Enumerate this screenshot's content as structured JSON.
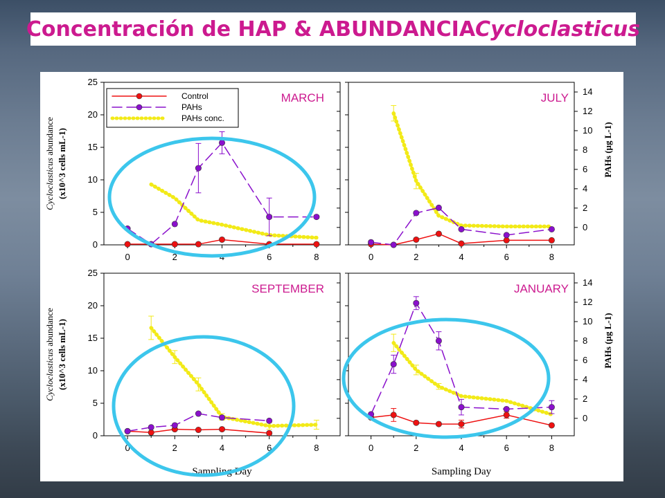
{
  "header": {
    "title_main": "Concentración de HAP & ABUNDANCIA ",
    "title_italic": "Cycloclasticus"
  },
  "colors": {
    "control": "#ee1111",
    "pahs": "#8a10cc",
    "pahs_conc": "#f2ea18",
    "ellipse": "#3cc6ec",
    "title": "#cc1a8f"
  },
  "axes": {
    "left_label_line1_italic": "Cycloclasticus",
    "left_label_line1_rest": " abundance",
    "left_label_line2": "(x10^3 cells mL-1)",
    "right_label": "PAHs (µg L-1)",
    "x_label": "Sampling Day",
    "left_ylim": [
      0,
      25
    ],
    "left_ticks": [
      "0",
      "5",
      "10",
      "15",
      "20",
      "25"
    ],
    "right_ylim": [
      -1.8,
      15
    ],
    "right_ticks": [
      "0",
      "2",
      "4",
      "6",
      "8",
      "10",
      "12",
      "14"
    ],
    "xlim": [
      -1,
      9
    ],
    "x_ticks": [
      "0",
      "2",
      "4",
      "6",
      "8"
    ]
  },
  "legend": {
    "location": "top-left of MARCH panel",
    "entries": [
      "Control",
      "PAHs",
      "PAHs conc."
    ]
  },
  "chart_data": [
    {
      "type": "line",
      "panel": "MARCH",
      "series": [
        {
          "name": "Control",
          "x": [
            0,
            2,
            3,
            4,
            6,
            8
          ],
          "values": [
            0.1,
            0.1,
            0.1,
            0.8,
            0.1,
            0.1
          ]
        },
        {
          "name": "PAHs",
          "x": [
            0,
            1,
            2,
            3,
            4,
            6,
            8
          ],
          "values": [
            2.5,
            0.1,
            3.2,
            11.8,
            15.7,
            4.3,
            4.3
          ],
          "err": [
            0,
            0,
            0,
            3.8,
            1.7,
            2.9,
            0
          ]
        },
        {
          "name": "PAHs conc.",
          "x": [
            1,
            2,
            3,
            4,
            6,
            8
          ],
          "values": [
            9.3,
            7.2,
            3.8,
            3.1,
            1.5,
            1.1
          ],
          "axis": "left"
        }
      ]
    },
    {
      "type": "line",
      "panel": "JULY",
      "series": [
        {
          "name": "Control",
          "x": [
            0,
            1,
            2,
            3,
            4,
            6,
            8
          ],
          "values": [
            0.1,
            0,
            0.8,
            1.7,
            0.2,
            0.7,
            0.7
          ]
        },
        {
          "name": "PAHs",
          "x": [
            0,
            1,
            2,
            3,
            4,
            6,
            8
          ],
          "values": [
            0.4,
            0,
            4.9,
            5.7,
            2.4,
            1.5,
            2.4
          ]
        },
        {
          "name": "PAHs conc.",
          "x": [
            1,
            2,
            3,
            4,
            6,
            8
          ],
          "values": [
            11.8,
            4.8,
            1.2,
            0.2,
            0.1,
            0.1
          ],
          "err": [
            0.8,
            0.8,
            0,
            0,
            0,
            0
          ],
          "axis": "right"
        }
      ]
    },
    {
      "type": "line",
      "panel": "SEPTEMBER",
      "series": [
        {
          "name": "Control",
          "x": [
            0,
            1,
            2,
            3,
            4,
            6
          ],
          "values": [
            0.7,
            0.5,
            1.0,
            0.9,
            1.0,
            0.4
          ]
        },
        {
          "name": "PAHs",
          "x": [
            0,
            1,
            2,
            3,
            4,
            6
          ],
          "values": [
            0.7,
            1.3,
            1.6,
            3.4,
            2.8,
            2.3
          ]
        },
        {
          "name": "PAHs conc.",
          "x": [
            1,
            2,
            3,
            4,
            6,
            8
          ],
          "values": [
            16.6,
            12.1,
            7.9,
            2.9,
            1.5,
            1.7
          ],
          "err": [
            1.8,
            1.0,
            1.0,
            0.5,
            0.5,
            0.7
          ],
          "axis": "left"
        }
      ]
    },
    {
      "type": "line",
      "panel": "JANUARY",
      "series": [
        {
          "name": "Control",
          "x": [
            0,
            1,
            2,
            3,
            4,
            6,
            8
          ],
          "values": [
            2.8,
            3.2,
            2.0,
            1.8,
            1.8,
            3.2,
            1.6
          ],
          "err": [
            0,
            1.0,
            0,
            0,
            0.6,
            0.5,
            0
          ]
        },
        {
          "name": "PAHs",
          "x": [
            0,
            1,
            2,
            3,
            4,
            6,
            8
          ],
          "values": [
            3.3,
            11.0,
            20.4,
            14.6,
            4.4,
            4.1,
            4.4
          ],
          "err": [
            0,
            1.4,
            1.0,
            1.4,
            1.2,
            0,
            1.0
          ]
        },
        {
          "name": "PAHs conc.",
          "x": [
            1,
            2,
            3,
            4,
            6,
            8
          ],
          "values": [
            7.8,
            5.0,
            3.3,
            2.3,
            1.8,
            0.4
          ],
          "err": [
            0.9,
            0.5,
            0.3,
            0,
            0,
            0
          ],
          "axis": "right"
        }
      ]
    }
  ],
  "panel_titles": [
    "MARCH",
    "JULY",
    "SEPTEMBER",
    "JANUARY"
  ]
}
